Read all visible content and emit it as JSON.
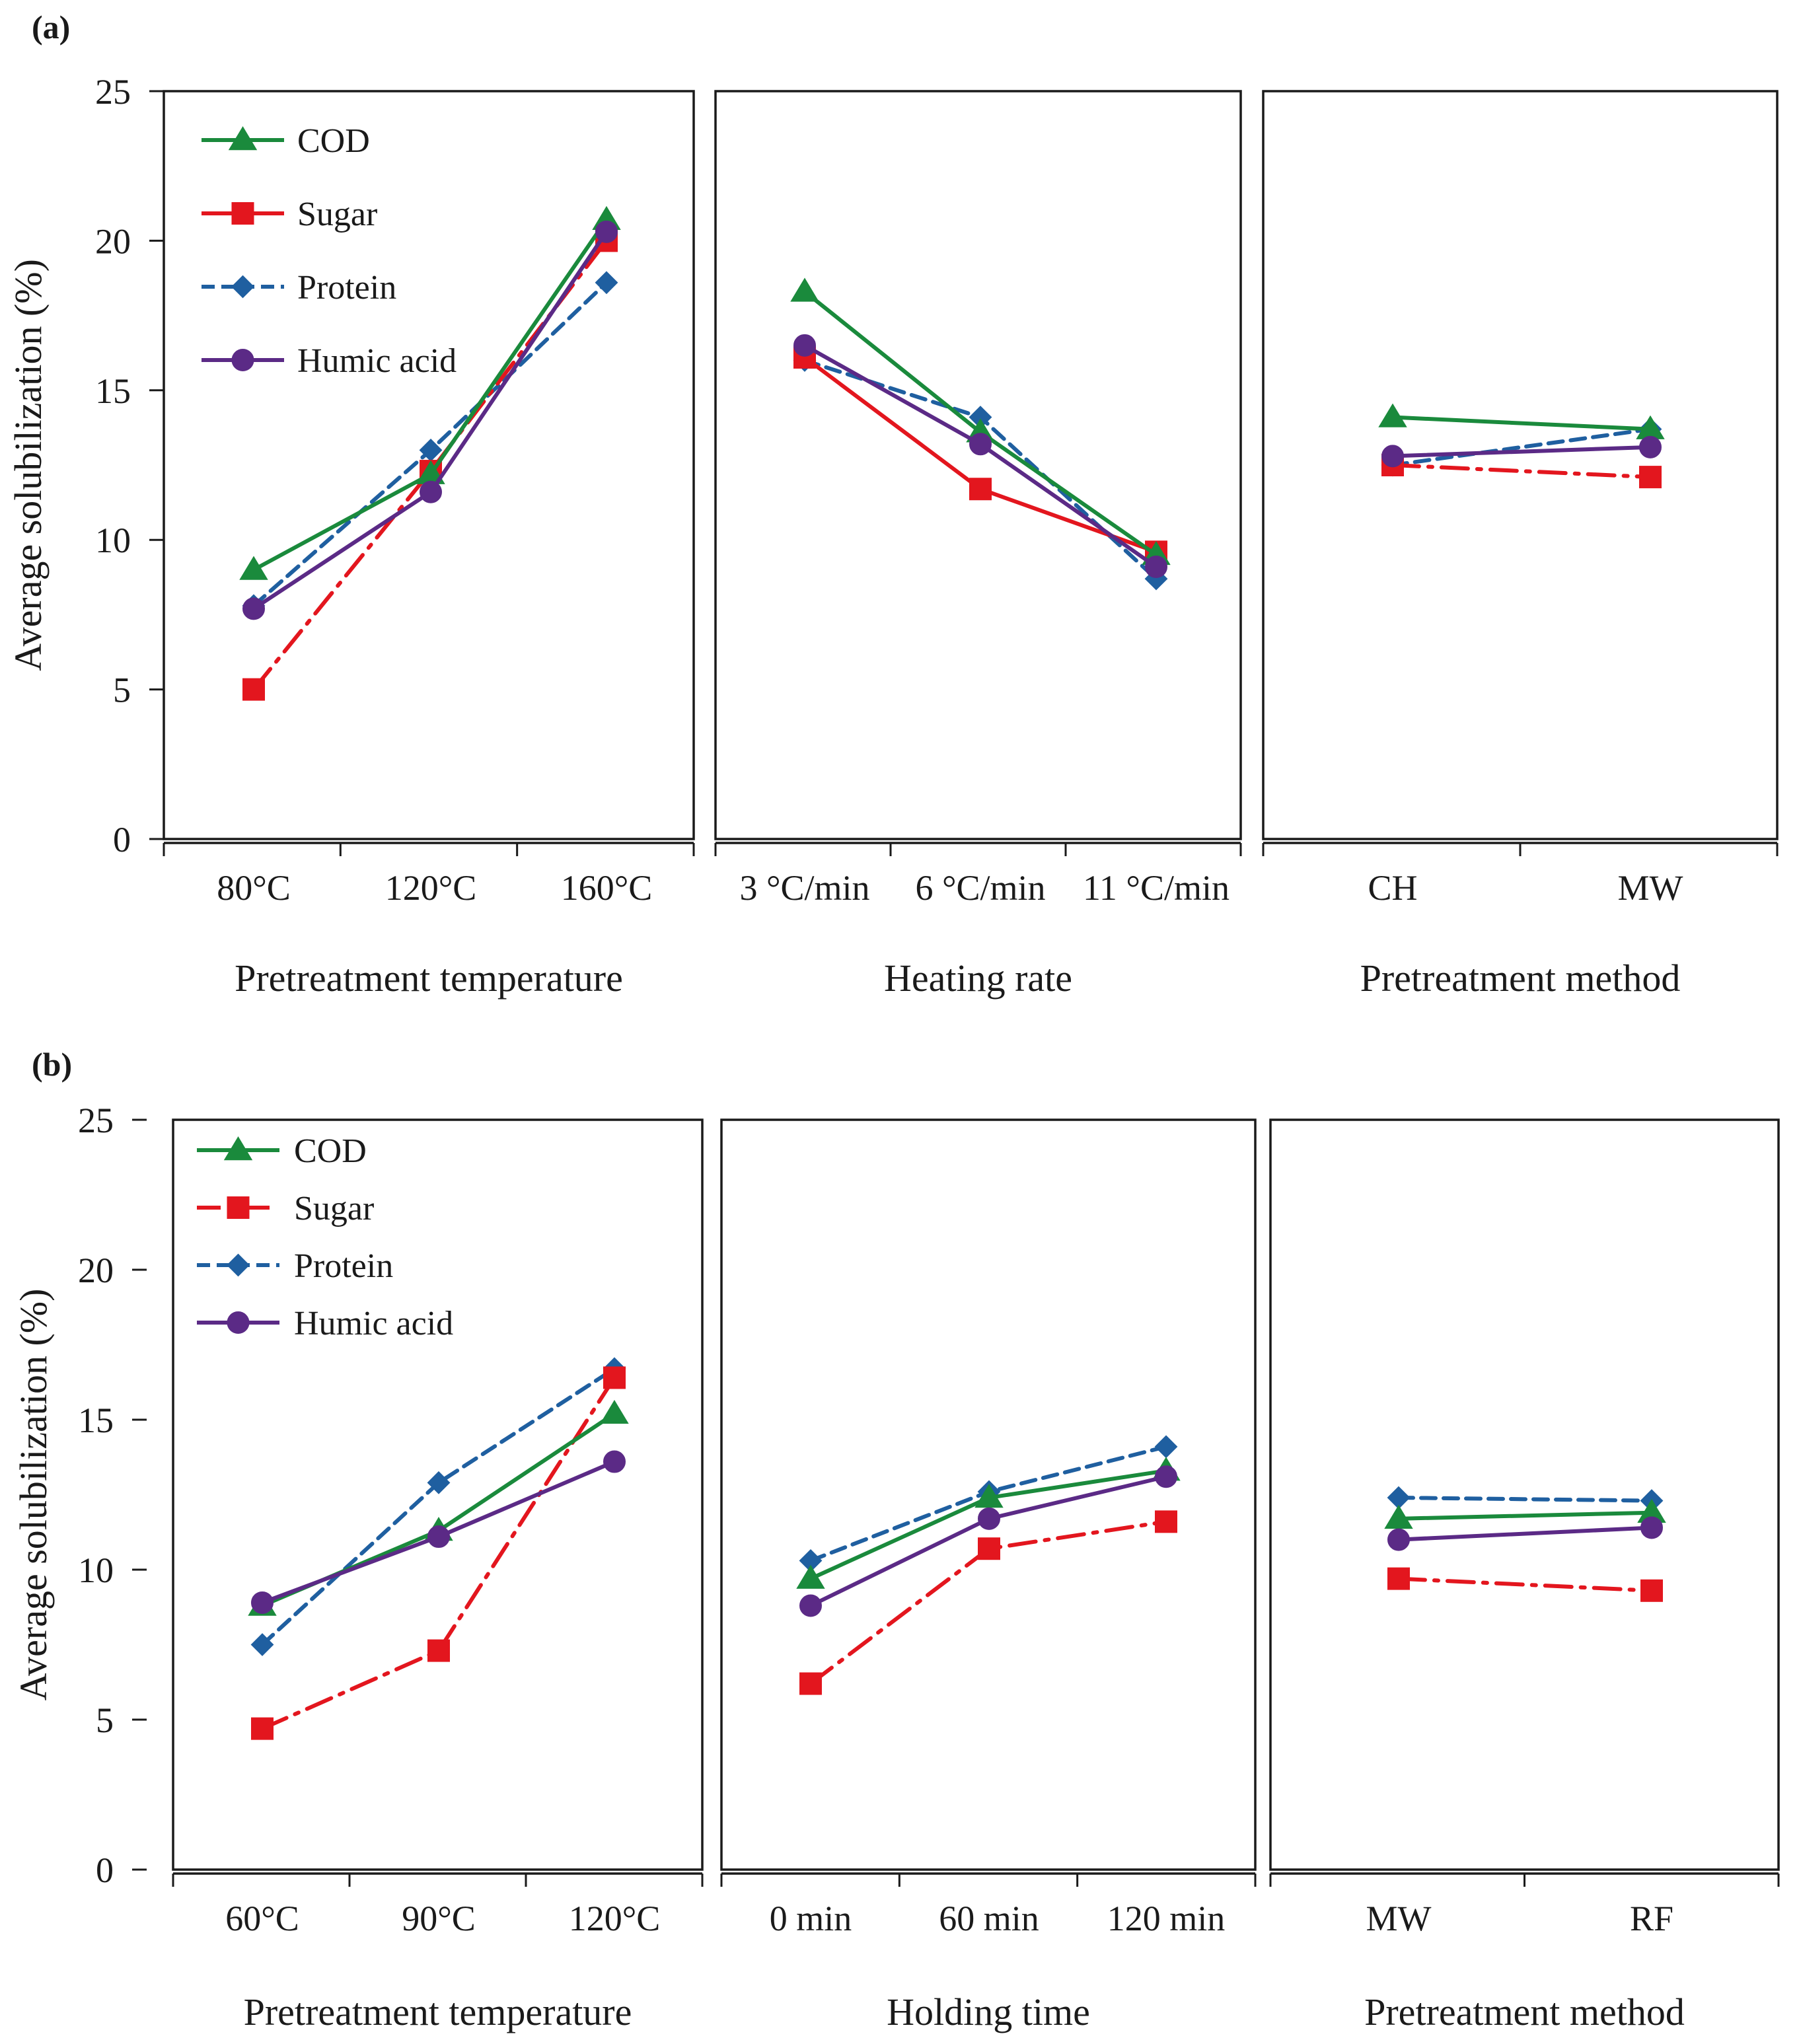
{
  "chart_data": [
    {
      "panel_label": "(a)",
      "ylabel": "Average solubilization (%)",
      "ylim": [
        0,
        25
      ],
      "yticks": [
        "0",
        "5",
        "10",
        "15",
        "20",
        "25"
      ],
      "type": "line",
      "legend": [
        "COD",
        "Sugar",
        "Protein",
        "Humic acid"
      ],
      "subplots": [
        {
          "xlabel": "Pretreatment temperature",
          "categories": [
            "80°C",
            "120°C",
            "160°C"
          ],
          "series": [
            {
              "name": "COD",
              "values": [
                9.0,
                12.2,
                20.7
              ]
            },
            {
              "name": "Sugar",
              "values": [
                5.0,
                12.3,
                20.0
              ]
            },
            {
              "name": "Protein",
              "values": [
                7.8,
                13.0,
                18.6
              ]
            },
            {
              "name": "Humic acid",
              "values": [
                7.7,
                11.6,
                20.3
              ]
            }
          ]
        },
        {
          "xlabel": "Heating rate",
          "categories": [
            "3 °C/min",
            "6 °C/min",
            "11 °C/min"
          ],
          "series": [
            {
              "name": "COD",
              "values": [
                18.3,
                13.6,
                9.5
              ]
            },
            {
              "name": "Sugar",
              "values": [
                16.1,
                11.7,
                9.6
              ]
            },
            {
              "name": "Protein",
              "values": [
                16.0,
                14.1,
                8.7
              ]
            },
            {
              "name": "Humic acid",
              "values": [
                16.5,
                13.2,
                9.1
              ]
            }
          ]
        },
        {
          "xlabel": "Pretreatment method",
          "categories": [
            "CH",
            "MW"
          ],
          "series": [
            {
              "name": "COD",
              "values": [
                14.1,
                13.7
              ]
            },
            {
              "name": "Sugar",
              "values": [
                12.5,
                12.1
              ]
            },
            {
              "name": "Protein",
              "values": [
                12.5,
                13.7
              ]
            },
            {
              "name": "Humic acid",
              "values": [
                12.8,
                13.1
              ]
            }
          ]
        }
      ]
    },
    {
      "panel_label": "(b)",
      "ylabel": "Average solubilization (%)",
      "ylim": [
        0,
        25
      ],
      "yticks": [
        "0",
        "5",
        "10",
        "15",
        "20",
        "25"
      ],
      "type": "line",
      "legend": [
        "COD",
        "Sugar",
        "Protein",
        "Humic acid"
      ],
      "subplots": [
        {
          "xlabel": "Pretreatment temperature",
          "categories": [
            "60°C",
            "90°C",
            "120°C"
          ],
          "series": [
            {
              "name": "COD",
              "values": [
                8.8,
                11.3,
                15.2
              ]
            },
            {
              "name": "Sugar",
              "values": [
                4.7,
                7.3,
                16.4
              ]
            },
            {
              "name": "Protein",
              "values": [
                7.5,
                12.9,
                16.7
              ]
            },
            {
              "name": "Humic acid",
              "values": [
                8.9,
                11.1,
                13.6
              ]
            }
          ]
        },
        {
          "xlabel": "Holding time",
          "categories": [
            "0 min",
            "60 min",
            "120 min"
          ],
          "series": [
            {
              "name": "COD",
              "values": [
                9.7,
                12.4,
                13.3
              ]
            },
            {
              "name": "Sugar",
              "values": [
                6.2,
                10.7,
                11.6
              ]
            },
            {
              "name": "Protein",
              "values": [
                10.3,
                12.6,
                14.1
              ]
            },
            {
              "name": "Humic acid",
              "values": [
                8.8,
                11.7,
                13.1
              ]
            }
          ]
        },
        {
          "xlabel": "Pretreatment method",
          "categories": [
            "MW",
            "RF"
          ],
          "series": [
            {
              "name": "COD",
              "values": [
                11.7,
                11.9
              ]
            },
            {
              "name": "Sugar",
              "values": [
                9.7,
                9.3
              ]
            },
            {
              "name": "Protein",
              "values": [
                12.4,
                12.3
              ]
            },
            {
              "name": "Humic acid",
              "values": [
                11.0,
                11.4
              ]
            }
          ]
        }
      ]
    }
  ],
  "series_styles": {
    "COD": {
      "color": "#1a8a3c",
      "dash": "",
      "marker": "triangle"
    },
    "Sugar": {
      "color": "#e3161e",
      "dash": "",
      "marker": "square"
    },
    "Protein": {
      "color": "#1f5fa0",
      "dash": "dashed",
      "marker": "diamond"
    },
    "Humic acid": {
      "color": "#5b2a86",
      "dash": "",
      "marker": "circle"
    }
  }
}
